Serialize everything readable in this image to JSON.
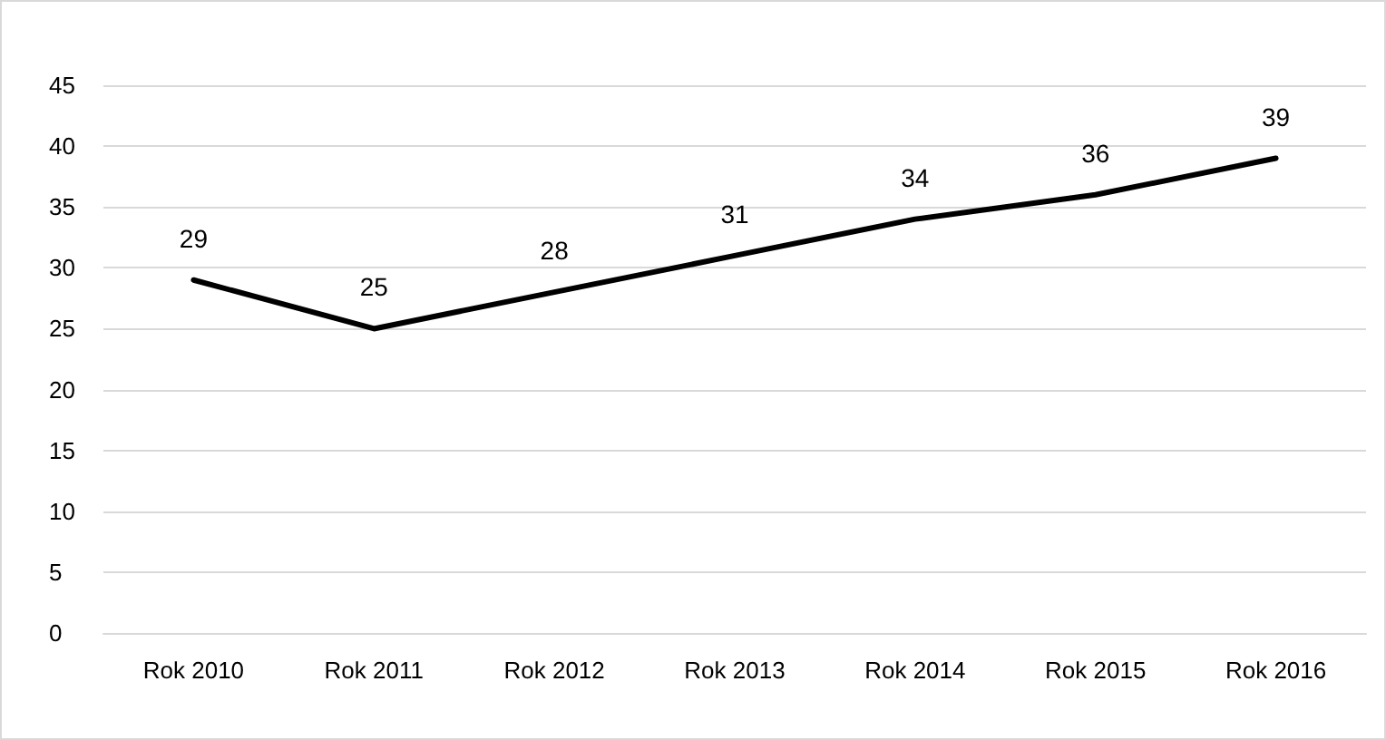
{
  "chart_data": {
    "type": "line",
    "categories": [
      "Rok 2010",
      "Rok 2011",
      "Rok 2012",
      "Rok 2013",
      "Rok 2014",
      "Rok 2015",
      "Rok 2016"
    ],
    "series": [
      {
        "color": "#000000",
        "values": [
          29,
          25,
          28,
          31,
          34,
          36,
          39
        ]
      }
    ],
    "ylim": [
      0,
      45
    ],
    "yticks": [
      0,
      5,
      10,
      15,
      20,
      25,
      30,
      35,
      40,
      45
    ],
    "grid": "y",
    "marker": "none",
    "data_labels": true
  }
}
